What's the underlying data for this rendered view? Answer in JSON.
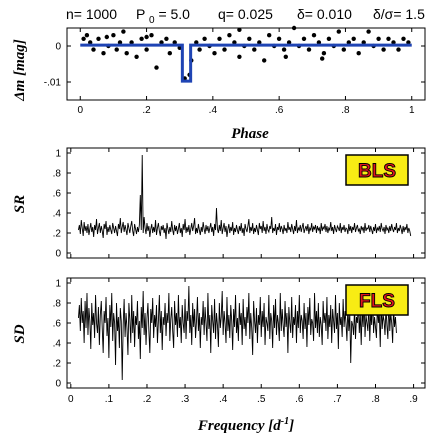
{
  "title": {
    "n_part": "n= 1000",
    "p_part_main": "P",
    "p_part_sub": "0",
    "p_part_val": "= 5.0",
    "q_part": "q= 0.025",
    "delta_part": "δ= 0.010",
    "ratio_part": "δ/σ= 1.5"
  },
  "chart_data": [
    {
      "type": "scatter",
      "id": "light-curve",
      "xlabel": "Phase",
      "ylabel": "Δm [mag]",
      "xlim": [
        -0.04,
        1.04
      ],
      "ylim": [
        -0.015,
        0.005
      ],
      "xticks": [
        "0",
        ".2",
        ".4",
        ".6",
        ".8",
        "1"
      ],
      "xtick_values": [
        0,
        0.2,
        0.4,
        0.6,
        0.8,
        1.0
      ],
      "yticks": [
        "0",
        "-.01"
      ],
      "ytick_values": [
        0,
        -0.01
      ],
      "grid": false,
      "series": [
        {
          "kind": "points",
          "points": [
            [
              0.01,
              0.002
            ],
            [
              0.02,
              0.003
            ],
            [
              0.03,
              0.001
            ],
            [
              0.04,
              -0.001
            ],
            [
              0.055,
              0.002
            ],
            [
              0.07,
              -0.002
            ],
            [
              0.085,
              0.0
            ],
            [
              0.1,
              0.003
            ],
            [
              0.11,
              -0.001
            ],
            [
              0.12,
              0.001
            ],
            [
              0.13,
              0.004
            ],
            [
              0.14,
              -0.002
            ],
            [
              0.155,
              0.001
            ],
            [
              0.17,
              -0.003
            ],
            [
              0.185,
              0.002
            ],
            [
              0.2,
              -0.001
            ],
            [
              0.215,
              0.003
            ],
            [
              0.23,
              -0.006
            ],
            [
              0.245,
              0.001
            ],
            [
              0.26,
              0.002
            ],
            [
              0.27,
              -0.002
            ],
            [
              0.285,
              0.001
            ],
            [
              0.3,
              -0.0005
            ],
            [
              0.315,
              -0.009
            ],
            [
              0.33,
              -0.008
            ],
            [
              0.335,
              -0.004
            ],
            [
              0.35,
              0.001
            ],
            [
              0.36,
              -0.001
            ],
            [
              0.375,
              0.002
            ],
            [
              0.39,
              0.0
            ],
            [
              0.405,
              -0.002
            ],
            [
              0.42,
              0.002
            ],
            [
              0.435,
              -0.001
            ],
            [
              0.45,
              0.003
            ],
            [
              0.465,
              0.001
            ],
            [
              0.48,
              -0.003
            ],
            [
              0.495,
              0.0
            ],
            [
              0.51,
              0.002
            ],
            [
              0.525,
              -0.001
            ],
            [
              0.54,
              0.001
            ],
            [
              0.555,
              -0.004
            ],
            [
              0.57,
              0.003
            ],
            [
              0.585,
              0.0
            ],
            [
              0.6,
              0.002
            ],
            [
              0.615,
              -0.001
            ],
            [
              0.63,
              0.001
            ],
            [
              0.645,
              0.005
            ],
            [
              0.66,
              0.0
            ],
            [
              0.675,
              0.002
            ],
            [
              0.69,
              -0.001
            ],
            [
              0.705,
              0.003
            ],
            [
              0.72,
              0.001
            ],
            [
              0.735,
              -0.002
            ],
            [
              0.75,
              0.002
            ],
            [
              0.765,
              0.0
            ],
            [
              0.78,
              0.004
            ],
            [
              0.795,
              -0.001
            ],
            [
              0.81,
              0.001
            ],
            [
              0.825,
              0.002
            ],
            [
              0.84,
              -0.002
            ],
            [
              0.855,
              0.001
            ],
            [
              0.87,
              0.004
            ],
            [
              0.885,
              0.0
            ],
            [
              0.9,
              0.002
            ],
            [
              0.915,
              -0.001
            ],
            [
              0.93,
              0.002
            ],
            [
              0.945,
              0.001
            ],
            [
              0.96,
              -0.001
            ],
            [
              0.975,
              0.002
            ],
            [
              0.99,
              0.001
            ],
            [
              0.2,
              0.0025
            ],
            [
              0.48,
              0.0045
            ],
            [
              0.62,
              -0.003
            ],
            [
              0.73,
              -0.0035
            ],
            [
              0.08,
              0.0025
            ]
          ]
        },
        {
          "kind": "box-model",
          "color": "#1f44b4",
          "baseline": 0.00025,
          "depth": 0.01,
          "transit_start": 0.308,
          "transit_end": 0.333
        }
      ]
    },
    {
      "type": "line",
      "id": "bls-spectrum",
      "ylabel": "SR",
      "badge": "BLS",
      "xlim": [
        -0.01,
        0.93
      ],
      "ylim": [
        -0.05,
        1.05
      ],
      "yticks": [
        "0",
        ".2",
        ".4",
        ".6",
        ".8",
        "1"
      ],
      "ytick_values": [
        0,
        0.2,
        0.4,
        0.6,
        0.8,
        1.0
      ],
      "xtick_values": [
        0,
        0.1,
        0.2,
        0.3,
        0.4,
        0.5,
        0.6,
        0.7,
        0.8,
        0.9
      ],
      "freq_start": 0.02,
      "freq_step": 0.0025,
      "values": [
        0.23,
        0.28,
        0.19,
        0.33,
        0.25,
        0.17,
        0.31,
        0.22,
        0.27,
        0.2,
        0.29,
        0.18,
        0.24,
        0.3,
        0.21,
        0.26,
        0.16,
        0.28,
        0.23,
        0.34,
        0.19,
        0.25,
        0.3,
        0.2,
        0.27,
        0.22,
        0.15,
        0.29,
        0.24,
        0.32,
        0.18,
        0.26,
        0.21,
        0.28,
        0.23,
        0.19,
        0.3,
        0.25,
        0.2,
        0.27,
        0.22,
        0.17,
        0.29,
        0.24,
        0.35,
        0.2,
        0.26,
        0.31,
        0.21,
        0.28,
        0.23,
        0.18,
        0.3,
        0.25,
        0.2,
        0.27,
        0.32,
        0.22,
        0.17,
        0.29,
        0.24,
        0.19,
        0.26,
        0.21,
        0.28,
        0.58,
        0.23,
        0.98,
        0.2,
        0.36,
        0.25,
        0.19,
        0.3,
        0.22,
        0.27,
        0.16,
        0.24,
        0.29,
        0.2,
        0.26,
        0.21,
        0.33,
        0.18,
        0.25,
        0.3,
        0.22,
        0.17,
        0.27,
        0.23,
        0.28,
        0.2,
        0.25,
        0.14,
        0.3,
        0.24,
        0.19,
        0.26,
        0.21,
        0.32,
        0.23,
        0.18,
        0.28,
        0.22,
        0.27,
        0.19,
        0.24,
        0.3,
        0.2,
        0.25,
        0.16,
        0.29,
        0.23,
        0.34,
        0.2,
        0.26,
        0.21,
        0.28,
        0.18,
        0.24,
        0.3,
        0.22,
        0.27,
        0.35,
        0.19,
        0.25,
        0.2,
        0.29,
        0.23,
        0.18,
        0.26,
        0.21,
        0.31,
        0.24,
        0.19,
        0.28,
        0.22,
        0.27,
        0.2,
        0.25,
        0.3,
        0.21,
        0.26,
        0.17,
        0.29,
        0.23,
        0.45,
        0.24,
        0.2,
        0.28,
        0.22,
        0.33,
        0.19,
        0.25,
        0.3,
        0.21,
        0.27,
        0.16,
        0.24,
        0.29,
        0.2,
        0.26,
        0.22,
        0.31,
        0.18,
        0.25,
        0.21,
        0.28,
        0.23,
        0.19,
        0.27,
        0.22,
        0.3,
        0.2,
        0.25,
        0.17,
        0.29,
        0.24,
        0.21,
        0.27,
        0.34,
        0.2,
        0.26,
        0.22,
        0.3,
        0.19,
        0.25,
        0.21,
        0.28,
        0.23,
        0.18,
        0.3,
        0.24,
        0.27,
        0.2,
        0.32,
        0.22,
        0.26,
        0.19,
        0.29,
        0.23,
        0.21,
        0.27,
        0.24,
        0.36,
        0.2,
        0.25,
        0.22,
        0.29,
        0.18,
        0.26,
        0.23,
        0.3,
        0.21,
        0.27,
        0.24,
        0.19,
        0.28,
        0.22,
        0.25,
        0.2,
        0.31,
        0.23,
        0.26,
        0.21,
        0.29,
        0.24,
        0.19,
        0.27,
        0.22,
        0.33,
        0.2,
        0.25,
        0.23,
        0.28,
        0.21,
        0.26,
        0.3,
        0.2,
        0.24,
        0.27,
        0.22,
        0.29,
        0.19,
        0.25,
        0.23,
        0.3,
        0.21,
        0.26,
        0.24,
        0.28,
        0.2,
        0.27,
        0.23,
        0.25,
        0.19,
        0.3,
        0.22,
        0.26,
        0.24,
        0.29,
        0.21,
        0.27,
        0.2,
        0.25,
        0.23,
        0.31,
        0.22,
        0.26,
        0.19,
        0.28,
        0.24,
        0.21,
        0.27,
        0.25,
        0.22,
        0.3,
        0.2,
        0.26,
        0.23,
        0.28,
        0.21,
        0.25,
        0.24,
        0.19,
        0.29,
        0.22,
        0.27,
        0.2,
        0.26,
        0.23,
        0.3,
        0.21,
        0.25,
        0.28,
        0.22,
        0.24,
        0.19,
        0.27,
        0.23,
        0.26,
        0.2,
        0.3,
        0.22,
        0.25,
        0.24,
        0.28,
        0.21,
        0.27,
        0.23,
        0.19,
        0.26,
        0.22,
        0.29,
        0.2,
        0.25,
        0.23,
        0.27,
        0.21,
        0.3,
        0.24,
        0.22,
        0.26,
        0.19,
        0.28,
        0.23,
        0.25,
        0.2,
        0.27,
        0.22,
        0.29,
        0.24,
        0.21,
        0.26,
        0.23,
        0.3,
        0.2,
        0.25,
        0.22,
        0.28,
        0.24,
        0.19,
        0.27,
        0.21,
        0.26,
        0.23,
        0.29,
        0.2,
        0.25,
        0.22,
        0.17
      ]
    },
    {
      "type": "line",
      "id": "fls-spectrum",
      "ylabel": "SD",
      "badge": "FLS",
      "xlabel": "Frequency [d^-1]",
      "xlim": [
        -0.01,
        0.93
      ],
      "ylim": [
        -0.05,
        1.05
      ],
      "xticks": [
        "0",
        ".1",
        ".2",
        ".3",
        ".4",
        ".5",
        ".6",
        ".7",
        ".8",
        ".9"
      ],
      "xtick_values": [
        0,
        0.1,
        0.2,
        0.3,
        0.4,
        0.5,
        0.6,
        0.7,
        0.8,
        0.9
      ],
      "yticks": [
        "0",
        ".2",
        ".4",
        ".6",
        ".8",
        "1"
      ],
      "ytick_values": [
        0,
        0.2,
        0.4,
        0.6,
        0.8,
        1.0
      ],
      "freq_start": 0.02,
      "freq_step": 0.0025,
      "values": [
        0.65,
        0.78,
        0.52,
        0.85,
        0.6,
        0.72,
        0.4,
        0.82,
        0.55,
        0.9,
        0.48,
        0.75,
        0.62,
        0.34,
        0.8,
        0.58,
        0.7,
        0.45,
        0.88,
        0.6,
        0.5,
        0.76,
        0.38,
        0.68,
        0.82,
        0.55,
        0.3,
        0.72,
        0.6,
        0.86,
        0.47,
        0.65,
        0.25,
        0.78,
        0.56,
        0.9,
        0.42,
        0.7,
        0.6,
        0.18,
        0.8,
        0.52,
        0.66,
        0.35,
        0.75,
        0.62,
        0.03,
        0.58,
        0.84,
        0.46,
        0.7,
        0.55,
        0.28,
        0.8,
        0.63,
        0.4,
        0.88,
        0.5,
        0.72,
        0.36,
        0.67,
        0.58,
        0.82,
        0.44,
        0.62,
        0.24,
        0.76,
        0.55,
        0.92,
        0.48,
        0.7,
        0.38,
        0.65,
        0.8,
        0.52,
        0.3,
        0.74,
        0.6,
        0.85,
        0.45,
        0.68,
        0.56,
        0.78,
        0.4,
        0.62,
        0.88,
        0.5,
        0.72,
        0.33,
        0.66,
        0.58,
        0.8,
        0.47,
        0.7,
        0.6,
        0.9,
        0.42,
        0.64,
        0.76,
        0.52,
        0.35,
        0.82,
        0.58,
        0.7,
        0.46,
        0.88,
        0.55,
        0.66,
        0.4,
        0.78,
        0.6,
        0.5,
        0.84,
        0.44,
        0.72,
        0.62,
        0.97,
        0.5,
        0.68,
        0.38,
        0.8,
        0.56,
        0.74,
        0.45,
        0.62,
        0.86,
        0.52,
        0.7,
        0.35,
        0.66,
        0.58,
        0.82,
        0.48,
        0.76,
        0.6,
        0.42,
        0.9,
        0.54,
        0.68,
        0.3,
        0.78,
        0.62,
        0.5,
        0.84,
        0.44,
        0.7,
        0.58,
        0.36,
        0.8,
        0.55,
        0.66,
        0.92,
        0.48,
        0.72,
        0.6,
        0.4,
        0.86,
        0.52,
        0.68,
        0.45,
        0.78,
        0.62,
        0.33,
        0.74,
        0.56,
        0.88,
        0.5,
        0.65,
        0.42,
        0.8,
        0.58,
        0.7,
        0.38,
        0.84,
        0.54,
        0.66,
        0.47,
        0.76,
        0.6,
        0.9,
        0.44,
        0.7,
        0.55,
        0.28,
        0.82,
        0.62,
        0.5,
        0.75,
        0.4,
        0.68,
        0.58,
        0.86,
        0.46,
        0.72,
        0.56,
        0.8,
        0.38,
        0.66,
        0.6,
        0.52,
        0.88,
        0.44,
        0.7,
        0.62,
        0.35,
        0.78,
        0.55,
        0.84,
        0.48,
        0.68,
        0.6,
        0.42,
        0.9,
        0.52,
        0.74,
        0.58,
        0.46,
        0.82,
        0.56,
        0.7,
        0.3,
        0.76,
        0.6,
        0.5,
        0.86,
        0.45,
        0.66,
        0.58,
        0.78,
        0.4,
        0.72,
        0.55,
        0.88,
        0.5,
        0.68,
        0.62,
        0.44,
        0.8,
        0.54,
        0.7,
        0.36,
        0.76,
        0.58,
        0.85,
        0.48,
        0.64,
        0.6,
        0.42,
        0.9,
        0.55,
        0.72,
        0.5,
        0.8,
        0.46,
        0.66,
        0.58,
        0.38,
        0.82,
        0.6,
        0.7,
        0.52,
        0.86,
        0.44,
        0.68,
        0.56,
        0.78,
        0.4,
        0.74,
        0.62,
        0.5,
        0.88,
        0.54,
        0.7,
        0.34,
        0.8,
        0.58,
        0.66,
        0.46,
        0.84,
        0.56,
        0.72,
        0.6,
        0.42,
        0.78,
        0.52,
        0.7,
        0.2,
        0.62,
        0.58,
        0.48,
        0.76,
        0.44,
        0.66,
        0.6,
        0.82,
        0.5,
        0.7,
        0.38,
        0.74,
        0.56,
        0.86,
        0.46,
        0.68,
        0.6,
        0.52,
        0.8,
        0.42,
        0.72,
        0.58,
        0.88,
        0.5,
        0.66,
        0.56,
        0.45,
        0.78,
        0.6,
        0.7,
        0.36,
        0.82,
        0.54,
        0.68,
        0.62,
        0.48,
        0.75,
        0.58,
        0.44,
        0.85,
        0.52,
        0.7,
        0.6,
        0.4,
        0.76,
        0.56,
        0.66,
        0.5
      ]
    }
  ]
}
